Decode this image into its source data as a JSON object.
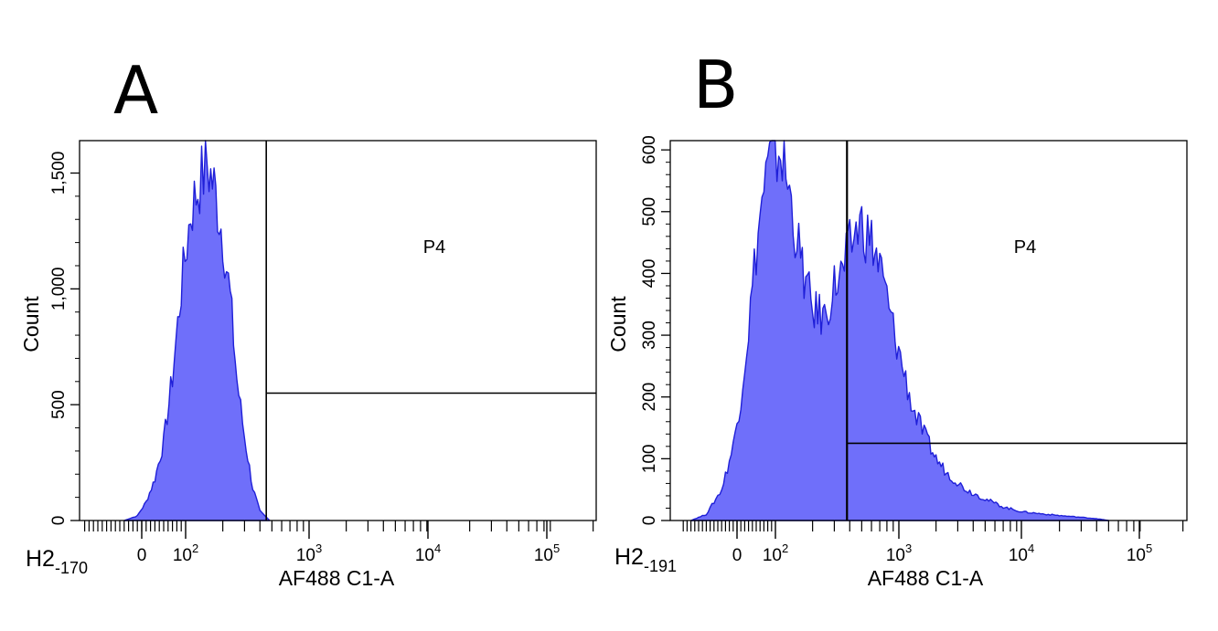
{
  "figure": {
    "panel_labels": [
      "A",
      "B"
    ]
  },
  "colors": {
    "fill": "#6f6ffa",
    "outline": "#1f1fd8",
    "axes": "#000000"
  },
  "chart_data": [
    {
      "type": "area",
      "panel": "A",
      "xlabel": "AF488 C1-A",
      "ylabel": "Count",
      "xscale": "biexponential",
      "xlim": [
        -170,
        262144
      ],
      "ylim": [
        0,
        1640
      ],
      "corner_label": "H2",
      "corner_sub": "-170",
      "y_ticks": [
        0,
        500,
        1000,
        1500
      ],
      "y_tick_labels": [
        "0",
        "500",
        "1,000",
        "1,500"
      ],
      "x_ticks": [
        {
          "base": "0",
          "sup": ""
        },
        {
          "base": "10",
          "sup": "2"
        },
        {
          "base": "10",
          "sup": "3"
        },
        {
          "base": "10",
          "sup": "4"
        },
        {
          "base": "10",
          "sup": "5"
        }
      ],
      "gate": {
        "name": "P4",
        "x_min": 450,
        "count_level": 550
      },
      "x": [
        -40,
        -10,
        10,
        30,
        50,
        70,
        90,
        110,
        130,
        150,
        170,
        200,
        230,
        260,
        300,
        350,
        400,
        480
      ],
      "values": [
        0,
        20,
        80,
        180,
        340,
        620,
        1000,
        1330,
        1460,
        1530,
        1440,
        1230,
        960,
        610,
        360,
        140,
        40,
        0
      ]
    },
    {
      "type": "area",
      "panel": "B",
      "xlabel": "AF488 C1-A",
      "ylabel": "Count",
      "xscale": "biexponential",
      "xlim": [
        -191,
        262144
      ],
      "ylim": [
        0,
        615
      ],
      "corner_label": "H2",
      "corner_sub": "-191",
      "y_ticks": [
        0,
        100,
        200,
        300,
        400,
        500,
        600
      ],
      "y_tick_labels": [
        "0",
        "100",
        "200",
        "300",
        "400",
        "500",
        "600"
      ],
      "x_ticks": [
        {
          "base": "0",
          "sup": ""
        },
        {
          "base": "10",
          "sup": "2"
        },
        {
          "base": "10",
          "sup": "3"
        },
        {
          "base": "10",
          "sup": "4"
        },
        {
          "base": "10",
          "sup": "5"
        }
      ],
      "gate": {
        "name": "P4",
        "x_min": 380,
        "count_level": 125
      },
      "x": [
        -120,
        -80,
        -40,
        -10,
        10,
        30,
        50,
        70,
        90,
        110,
        130,
        160,
        200,
        250,
        300,
        350,
        400,
        450,
        500,
        600,
        700,
        800,
        900,
        1100,
        1300,
        1600,
        2000,
        2500,
        3500,
        5000,
        7000,
        10000,
        20000,
        40000,
        50000
      ],
      "values": [
        0,
        10,
        50,
        120,
        200,
        310,
        440,
        540,
        590,
        600,
        530,
        420,
        340,
        330,
        380,
        400,
        440,
        470,
        480,
        450,
        410,
        360,
        310,
        240,
        180,
        140,
        100,
        75,
        50,
        35,
        22,
        14,
        8,
        3,
        0
      ]
    }
  ]
}
